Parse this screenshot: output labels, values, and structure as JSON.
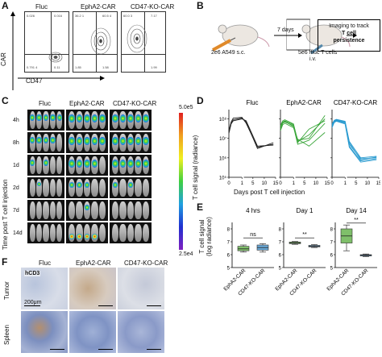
{
  "panels": {
    "A": {
      "label": "A",
      "titles": [
        "Fluc",
        "EphA2-CAR",
        "CD47-KO-CAR"
      ],
      "ylabel": "CAR",
      "xlabel": "CD47",
      "quadrants": [
        {
          "tl": "0.026",
          "tr": "0.016",
          "bl": "0.791 4",
          "br": "0.11"
        },
        {
          "tl": "36.2 1",
          "tr": "60.5 4",
          "bl": "1.85",
          "br": "1.58"
        },
        {
          "tl": "60.0 3",
          "tr": "7.17",
          "bl": "",
          "br": "1.99"
        }
      ]
    },
    "B": {
      "label": "B",
      "inject_label": "2e6 A549 s.c.",
      "days_label": "7 days",
      "tcell_label": "5e6 ffluc T cells",
      "route_label": "i.v.",
      "box_line1": "Imaging to track",
      "box_line2": "T cell",
      "box_line3": "persistence"
    },
    "C": {
      "label": "C",
      "titles": [
        "Fluc",
        "EphA2-CAR",
        "CD47-KO-CAR"
      ],
      "timepoints": [
        "4h",
        "8h",
        "1d",
        "2d",
        "7d",
        "14d"
      ],
      "ylabel": "Time post T cell injection",
      "scale_max": "5.0e5",
      "scale_min": "2.5e4"
    },
    "D": {
      "label": "D",
      "titles": [
        "Fluc",
        "EphA2-CAR",
        "CD47-KO-CAR"
      ],
      "ylabel": "T cell signal (radiance)",
      "xlabel": "Days post T cell injection",
      "yticks": [
        "10⁸",
        "10⁷",
        "10⁶",
        "10⁵"
      ],
      "xticks": [
        "0",
        "1",
        "5",
        "10",
        "15"
      ]
    },
    "E": {
      "label": "E",
      "titles": [
        "4 hrs",
        "Day 1",
        "Day 14"
      ],
      "ylabel_line1": "T cell signal",
      "ylabel_line2": "(log radiance)",
      "yticks": [
        "8",
        "7",
        "6",
        "5"
      ],
      "categories": [
        "EphA2-CAR",
        "CD47-KO-CAR"
      ],
      "significance": [
        "ns",
        "**",
        "**"
      ]
    },
    "F": {
      "label": "F",
      "titles": [
        "Fluc",
        "EphA2-CAR",
        "CD47-KO-CAR"
      ],
      "rows": [
        "Tumor",
        "Spleen"
      ],
      "stain_label": "hCD3",
      "scale_label": "200μm"
    }
  },
  "chart_data": [
    {
      "type": "line",
      "panel": "D",
      "title": "Fluc",
      "x": [
        0,
        0.17,
        0.33,
        1,
        2,
        7,
        14
      ],
      "yscale": "log",
      "ylim": [
        100000,
        300000000
      ],
      "series": [
        {
          "values": [
            20000000,
            60000000,
            90000000,
            110000000,
            70000000,
            3000000,
            6000000
          ]
        },
        {
          "values": [
            25000000,
            70000000,
            110000000,
            120000000,
            60000000,
            3500000,
            5000000
          ]
        },
        {
          "values": [
            18000000,
            55000000,
            80000000,
            100000000,
            80000000,
            4000000,
            4500000
          ]
        }
      ]
    },
    {
      "type": "line",
      "panel": "D",
      "title": "EphA2-CAR",
      "x": [
        0,
        0.17,
        0.33,
        1,
        2,
        7,
        14
      ],
      "yscale": "log",
      "ylim": [
        100000,
        300000000
      ],
      "series": [
        {
          "values": [
            40000000,
            70000000,
            80000000,
            50000000,
            8000000,
            10000000,
            150000000
          ]
        },
        {
          "values": [
            30000000,
            60000000,
            70000000,
            45000000,
            6000000,
            30000000,
            80000000
          ]
        },
        {
          "values": [
            35000000,
            65000000,
            75000000,
            40000000,
            5000000,
            8000000,
            60000000
          ]
        },
        {
          "values": [
            25000000,
            50000000,
            60000000,
            35000000,
            9000000,
            4000000,
            20000000
          ]
        },
        {
          "values": [
            45000000,
            80000000,
            90000000,
            55000000,
            7000000,
            15000000,
            100000000
          ]
        }
      ]
    },
    {
      "type": "line",
      "panel": "D",
      "title": "CD47-KO-CAR",
      "x": [
        0,
        0.17,
        0.33,
        1,
        2,
        7,
        14
      ],
      "yscale": "log",
      "ylim": [
        100000,
        300000000
      ],
      "series": [
        {
          "values": [
            50000000,
            80000000,
            90000000,
            70000000,
            5000000,
            900000,
            1000000
          ]
        },
        {
          "values": [
            40000000,
            70000000,
            80000000,
            60000000,
            4000000,
            700000,
            900000
          ]
        },
        {
          "values": [
            45000000,
            75000000,
            85000000,
            65000000,
            6000000,
            800000,
            1100000
          ]
        },
        {
          "values": [
            35000000,
            65000000,
            75000000,
            55000000,
            3500000,
            600000,
            800000
          ]
        },
        {
          "values": [
            55000000,
            85000000,
            95000000,
            75000000,
            7000000,
            1000000,
            1200000
          ]
        }
      ]
    },
    {
      "type": "box",
      "panel": "E",
      "title": "4 hrs",
      "categories": [
        "EphA2-CAR",
        "CD47-KO-CAR"
      ],
      "ylim": [
        5,
        8.5
      ],
      "boxes": [
        {
          "min": 6.2,
          "q1": 6.3,
          "median": 6.45,
          "q3": 6.65,
          "max": 6.75
        },
        {
          "min": 6.2,
          "q1": 6.35,
          "median": 6.55,
          "q3": 6.75,
          "max": 6.85
        }
      ]
    },
    {
      "type": "box",
      "panel": "E",
      "title": "Day 1",
      "categories": [
        "EphA2-CAR",
        "CD47-KO-CAR"
      ],
      "ylim": [
        5,
        8.5
      ],
      "boxes": [
        {
          "min": 6.8,
          "q1": 6.85,
          "median": 6.92,
          "q3": 6.98,
          "max": 7.02
        },
        {
          "min": 6.55,
          "q1": 6.6,
          "median": 6.65,
          "q3": 6.72,
          "max": 6.78
        }
      ]
    },
    {
      "type": "box",
      "panel": "E",
      "title": "Day 14",
      "categories": [
        "EphA2-CAR",
        "CD47-KO-CAR"
      ],
      "ylim": [
        5,
        8.5
      ],
      "boxes": [
        {
          "min": 6.3,
          "q1": 6.9,
          "median": 7.45,
          "q3": 8.0,
          "max": 8.3
        },
        {
          "min": 5.85,
          "q1": 5.9,
          "median": 5.95,
          "q3": 6.0,
          "max": 6.05
        }
      ]
    }
  ]
}
